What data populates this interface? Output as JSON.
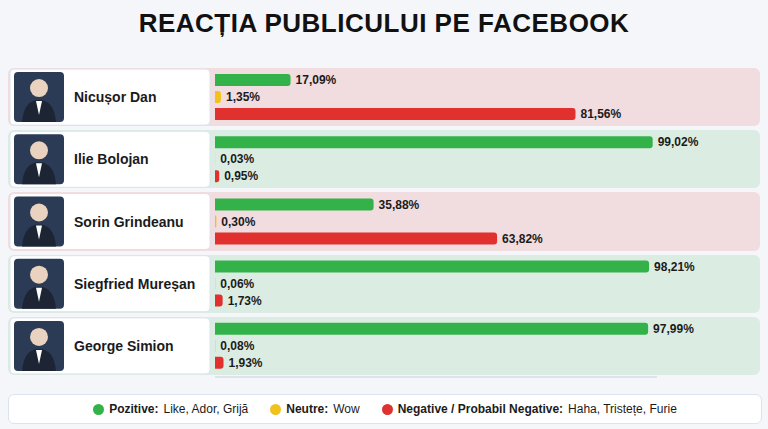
{
  "chart_data": {
    "type": "bar",
    "title": "REACȚIA PUBLICULUI PE FACEBOOK",
    "orientation": "horizontal",
    "categories": [
      "Nicușor Dan",
      "Ilie Bolojan",
      "Sorin Grindeanu",
      "Siegfried Mureșan",
      "George Simion"
    ],
    "series": [
      {
        "name": "Pozitive:",
        "reactions": "Like, Ador, Grijă",
        "color": "#34b24a",
        "values": [
          17.09,
          99.02,
          35.88,
          98.21,
          97.99
        ],
        "value_labels": [
          "17,09%",
          "99,02%",
          "35,88%",
          "98,21%",
          "97,99%"
        ]
      },
      {
        "name": "Neutre:",
        "reactions": "Wow",
        "color": "#f2c21b",
        "values": [
          1.35,
          0.03,
          0.3,
          0.06,
          0.08
        ],
        "value_labels": [
          "1,35%",
          "0,03%",
          "0,30%",
          "0,06%",
          "0,08%"
        ]
      },
      {
        "name": "Negative / Probabil Negative:",
        "reactions": "Haha, Tristețe, Furie",
        "color": "#e0312f",
        "values": [
          81.56,
          0.95,
          63.82,
          1.73,
          1.93
        ],
        "value_labels": [
          "81,56%",
          "0,95%",
          "63,82%",
          "1,73%",
          "1,93%"
        ]
      }
    ],
    "xlim": [
      0,
      100
    ],
    "tick_labels": false,
    "data_labels": true,
    "legend": "bottom",
    "grid": false
  }
}
